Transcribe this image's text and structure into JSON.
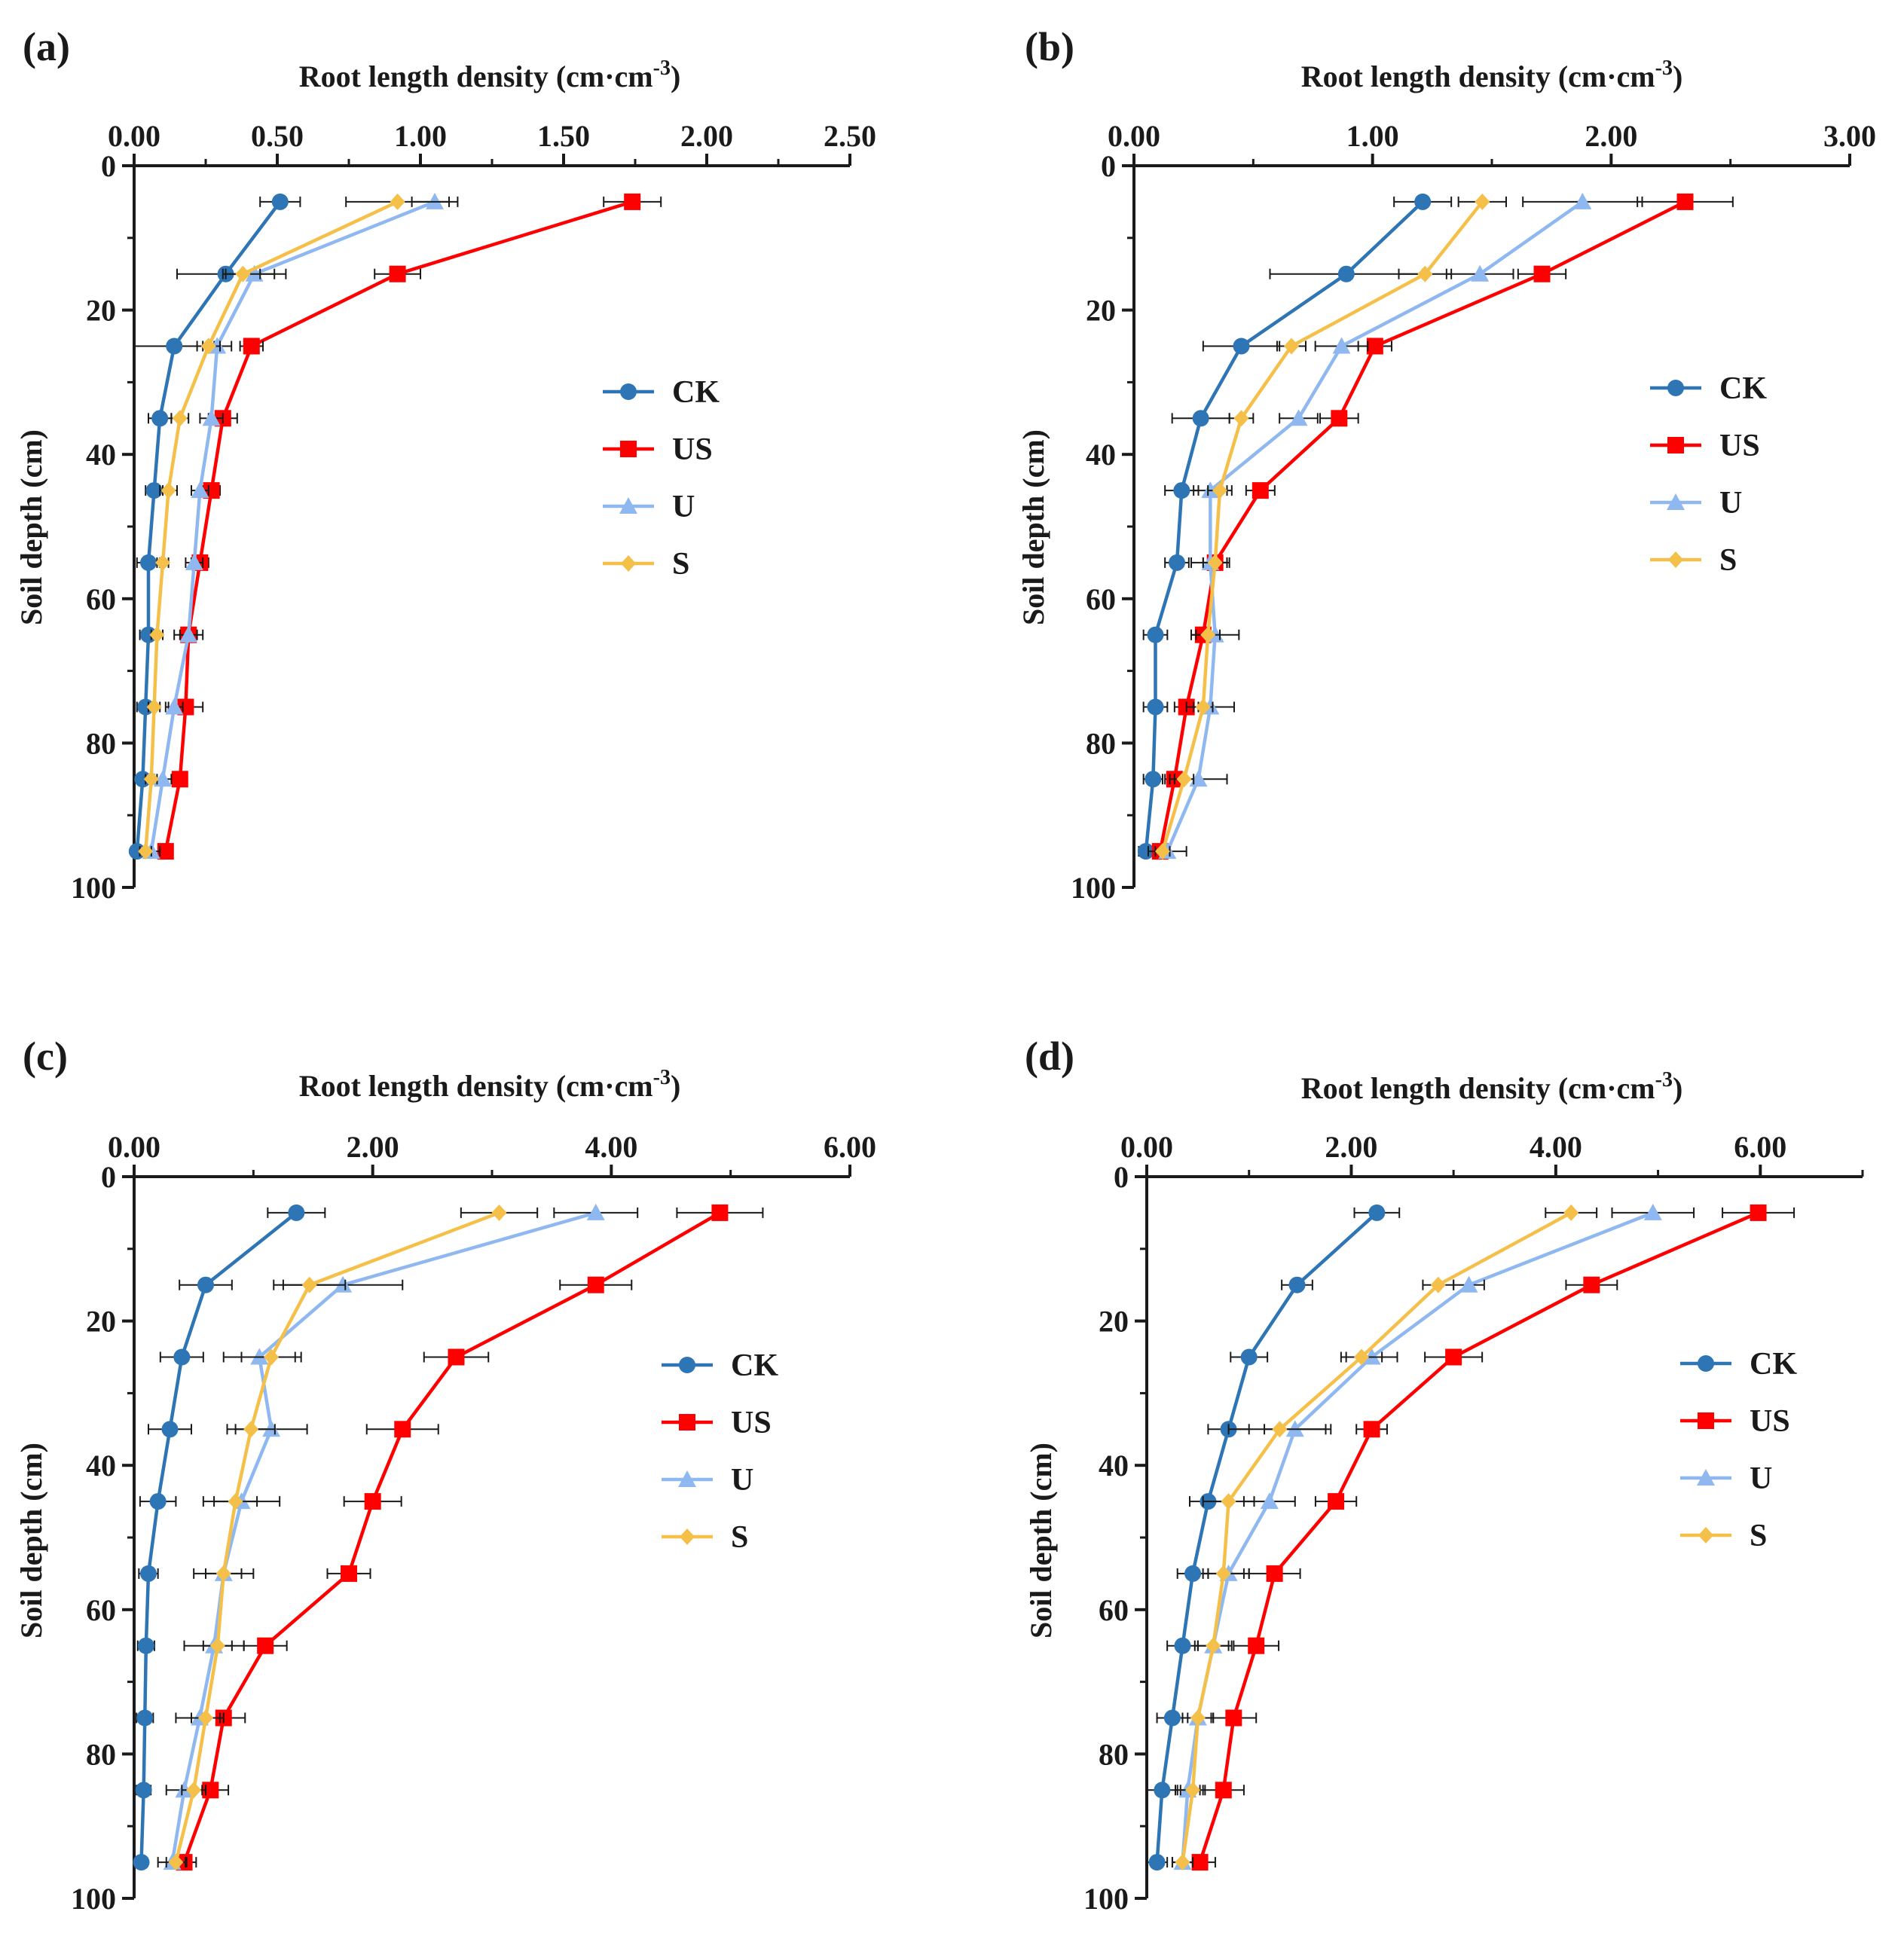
{
  "figure": {
    "legend_series": [
      "CK",
      "US",
      "U",
      "S"
    ],
    "colors": {
      "CK": "#2e75b6",
      "US": "#ff0000",
      "U": "#8fb8f0",
      "S": "#f5c04a",
      "axis": "#1a1a1a",
      "errorbar": "#1a1a1a"
    },
    "markers": {
      "CK": "circle",
      "US": "square",
      "U": "triangle-up",
      "S": "diamond"
    }
  },
  "chart_data": [
    {
      "panel": "(a)",
      "type": "line",
      "xlabel": "Root length density (cm·cm",
      "xlabel_sup": "-3",
      "xlabel_close": ")",
      "ylabel": "Soil depth (cm)",
      "xlim": [
        0,
        2.5
      ],
      "ylim": [
        0,
        100
      ],
      "x_ticks": [
        "0.00",
        "0.50",
        "1.00",
        "1.50",
        "2.00",
        "2.50"
      ],
      "x_tick_values": [
        0,
        0.5,
        1.0,
        1.5,
        2.0,
        2.5
      ],
      "y_ticks": [
        "0",
        "20",
        "40",
        "60",
        "80",
        "100"
      ],
      "y_tick_values": [
        0,
        20,
        40,
        60,
        80,
        100
      ],
      "depth": [
        5,
        15,
        25,
        35,
        45,
        55,
        65,
        75,
        85,
        95
      ],
      "legend_position": "right-middle",
      "series": [
        {
          "name": "CK",
          "x": [
            0.51,
            0.32,
            0.14,
            0.09,
            0.07,
            0.05,
            0.05,
            0.04,
            0.03,
            0.01
          ],
          "err": [
            0.07,
            0.17,
            0.14,
            0.04,
            0.03,
            0.04,
            0.03,
            0.03,
            0.03,
            0.02
          ]
        },
        {
          "name": "US",
          "x": [
            1.74,
            0.92,
            0.41,
            0.31,
            0.27,
            0.23,
            0.19,
            0.18,
            0.16,
            0.11
          ],
          "err": [
            0.1,
            0.08,
            0.04,
            0.05,
            0.03,
            0.03,
            0.05,
            0.06,
            0.02,
            0.02
          ]
        },
        {
          "name": "U",
          "x": [
            1.05,
            0.42,
            0.29,
            0.27,
            0.23,
            0.21,
            0.19,
            0.14,
            0.1,
            0.06
          ],
          "err": [
            0.08,
            0.11,
            0.05,
            0.04,
            0.03,
            0.03,
            0.03,
            0.03,
            0.03,
            0.03
          ]
        },
        {
          "name": "S",
          "x": [
            0.92,
            0.38,
            0.26,
            0.16,
            0.12,
            0.1,
            0.08,
            0.07,
            0.06,
            0.04
          ],
          "err": [
            0.18,
            0.06,
            0.04,
            0.03,
            0.03,
            0.02,
            0.02,
            0.02,
            0.02,
            0.02
          ]
        }
      ]
    },
    {
      "panel": "(b)",
      "type": "line",
      "xlabel": "Root length density (cm·cm",
      "xlabel_sup": "-3",
      "xlabel_close": ")",
      "ylabel": "Soil depth (cm)",
      "xlim": [
        0,
        3.0
      ],
      "ylim": [
        0,
        100
      ],
      "x_ticks": [
        "0.00",
        "1.00",
        "2.00",
        "3.00"
      ],
      "x_tick_values": [
        0,
        1.0,
        2.0,
        3.0
      ],
      "y_ticks": [
        "0",
        "20",
        "40",
        "60",
        "80",
        "100"
      ],
      "y_tick_values": [
        0,
        20,
        40,
        60,
        80,
        100
      ],
      "depth": [
        5,
        15,
        25,
        35,
        45,
        55,
        65,
        75,
        85,
        95
      ],
      "legend_position": "right-middle",
      "series": [
        {
          "name": "CK",
          "x": [
            1.21,
            0.89,
            0.45,
            0.28,
            0.2,
            0.18,
            0.09,
            0.09,
            0.08,
            0.05
          ],
          "err": [
            0.12,
            0.32,
            0.16,
            0.12,
            0.07,
            0.05,
            0.05,
            0.05,
            0.04,
            0.03
          ]
        },
        {
          "name": "US",
          "x": [
            2.31,
            1.71,
            1.01,
            0.86,
            0.53,
            0.34,
            0.29,
            0.22,
            0.17,
            0.11
          ],
          "err": [
            0.2,
            0.1,
            0.07,
            0.08,
            0.06,
            0.05,
            0.05,
            0.05,
            0.04,
            0.03
          ]
        },
        {
          "name": "U",
          "x": [
            1.88,
            1.45,
            0.87,
            0.69,
            0.32,
            0.32,
            0.34,
            0.32,
            0.27,
            0.14
          ],
          "err": [
            0.25,
            0.14,
            0.11,
            0.08,
            0.07,
            0.08,
            0.1,
            0.1,
            0.12,
            0.08
          ]
        },
        {
          "name": "S",
          "x": [
            1.46,
            1.22,
            0.66,
            0.45,
            0.36,
            0.34,
            0.31,
            0.29,
            0.21,
            0.12
          ],
          "err": [
            0.1,
            0.11,
            0.06,
            0.05,
            0.05,
            0.05,
            0.05,
            0.04,
            0.04,
            0.03
          ]
        }
      ]
    },
    {
      "panel": "(c)",
      "type": "line",
      "xlabel": "Root length density (cm·cm",
      "xlabel_sup": "-3",
      "xlabel_close": ")",
      "ylabel": "Soil depth (cm)",
      "xlim": [
        0,
        6.0
      ],
      "ylim": [
        0,
        100
      ],
      "x_ticks": [
        "0.00",
        "2.00",
        "4.00",
        "6.00"
      ],
      "x_tick_values": [
        0,
        2.0,
        4.0,
        6.0
      ],
      "y_ticks": [
        "0",
        "20",
        "40",
        "60",
        "80",
        "100"
      ],
      "y_tick_values": [
        0,
        20,
        40,
        60,
        80,
        100
      ],
      "depth": [
        5,
        15,
        25,
        35,
        45,
        55,
        65,
        75,
        85,
        95
      ],
      "legend_position": "right-middle",
      "series": [
        {
          "name": "CK",
          "x": [
            1.36,
            0.6,
            0.4,
            0.3,
            0.2,
            0.12,
            0.1,
            0.09,
            0.08,
            0.06
          ],
          "err": [
            0.24,
            0.22,
            0.18,
            0.18,
            0.15,
            0.08,
            0.07,
            0.07,
            0.06,
            0.05
          ]
        },
        {
          "name": "US",
          "x": [
            4.91,
            3.87,
            2.7,
            2.25,
            2.0,
            1.8,
            1.1,
            0.75,
            0.64,
            0.42
          ],
          "err": [
            0.36,
            0.3,
            0.27,
            0.3,
            0.24,
            0.18,
            0.18,
            0.18,
            0.15,
            0.1
          ]
        },
        {
          "name": "U",
          "x": [
            3.87,
            1.75,
            1.05,
            1.15,
            0.9,
            0.75,
            0.67,
            0.55,
            0.42,
            0.32
          ],
          "err": [
            0.35,
            0.5,
            0.3,
            0.3,
            0.32,
            0.25,
            0.25,
            0.2,
            0.15,
            0.12
          ]
        },
        {
          "name": "S",
          "x": [
            3.06,
            1.47,
            1.15,
            0.98,
            0.85,
            0.75,
            0.7,
            0.6,
            0.5,
            0.35
          ],
          "err": [
            0.32,
            0.3,
            0.25,
            0.2,
            0.18,
            0.15,
            0.12,
            0.12,
            0.1,
            0.08
          ]
        }
      ]
    },
    {
      "panel": "(d)",
      "type": "line",
      "xlabel": "Root length density (cm·cm",
      "xlabel_sup": "-3",
      "xlabel_close": ")",
      "ylabel": "Soil depth (cm)",
      "xlim": [
        0,
        7.0
      ],
      "ylim": [
        0,
        100
      ],
      "x_ticks": [
        "0.00",
        "2.00",
        "4.00",
        "6.00"
      ],
      "x_tick_values": [
        0,
        2.0,
        4.0,
        6.0
      ],
      "y_ticks": [
        "0",
        "20",
        "40",
        "60",
        "80",
        "100"
      ],
      "y_tick_values": [
        0,
        20,
        40,
        60,
        80,
        100
      ],
      "depth": [
        5,
        15,
        25,
        35,
        45,
        55,
        65,
        75,
        85,
        95
      ],
      "legend_position": "right-middle",
      "series": [
        {
          "name": "CK",
          "x": [
            2.25,
            1.47,
            1.0,
            0.8,
            0.6,
            0.45,
            0.35,
            0.25,
            0.15,
            0.1
          ],
          "err": [
            0.22,
            0.15,
            0.18,
            0.2,
            0.18,
            0.15,
            0.15,
            0.15,
            0.15,
            0.1
          ]
        },
        {
          "name": "US",
          "x": [
            5.98,
            4.35,
            3.0,
            2.2,
            1.85,
            1.25,
            1.07,
            0.85,
            0.75,
            0.52
          ],
          "err": [
            0.35,
            0.25,
            0.28,
            0.15,
            0.2,
            0.25,
            0.22,
            0.22,
            0.2,
            0.15
          ]
        },
        {
          "name": "U",
          "x": [
            4.95,
            3.15,
            2.2,
            1.45,
            1.2,
            0.8,
            0.65,
            0.5,
            0.4,
            0.35
          ],
          "err": [
            0.4,
            0.15,
            0.25,
            0.3,
            0.25,
            0.2,
            0.15,
            0.15,
            0.12,
            0.1
          ]
        },
        {
          "name": "S",
          "x": [
            4.15,
            2.85,
            2.1,
            1.3,
            0.8,
            0.75,
            0.65,
            0.5,
            0.45,
            0.35
          ],
          "err": [
            0.25,
            0.15,
            0.2,
            0.5,
            0.25,
            0.2,
            0.18,
            0.15,
            0.12,
            0.1
          ]
        }
      ]
    }
  ]
}
